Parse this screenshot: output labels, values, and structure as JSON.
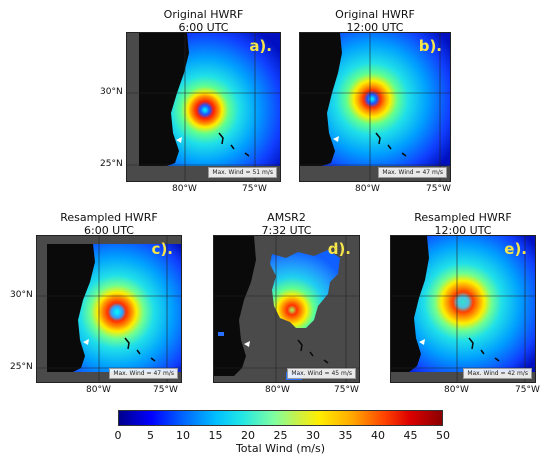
{
  "panels": {
    "a": {
      "title1": "Original HWRF",
      "title2": "6:00 UTC",
      "tag": "a).",
      "maxwind": "Max. Wind = 51 m/s"
    },
    "b": {
      "title1": "Original HWRF",
      "title2": "12:00 UTC",
      "tag": "b).",
      "maxwind": "Max. Wind = 47 m/s"
    },
    "c": {
      "title1": "Resampled HWRF",
      "title2": "6:00 UTC",
      "tag": "c).",
      "maxwind": "Max. Wind = 47 m/s"
    },
    "d": {
      "title1": "AMSR2",
      "title2": "7:32 UTC",
      "tag": "d).",
      "maxwind": "Max. Wind = 45 m/s"
    },
    "e": {
      "title1": "Resampled HWRF",
      "title2": "12:00 UTC",
      "tag": "e).",
      "maxwind": "Max. Wind = 42 m/s"
    }
  },
  "axes": {
    "lat_30": "30°N",
    "lat_25": "25°N",
    "lon_80": "80°W",
    "lon_75": "75°W"
  },
  "colorbar": {
    "label": "Total Wind (m/s)",
    "ticks": [
      "0",
      "5",
      "10",
      "15",
      "20",
      "25",
      "30",
      "35",
      "40",
      "45",
      "50"
    ],
    "range": [
      0,
      50
    ]
  },
  "colors": {
    "land": "#0a0a0a",
    "nodata": "#4a4a4a",
    "tag_text": "#f5e64a"
  }
}
